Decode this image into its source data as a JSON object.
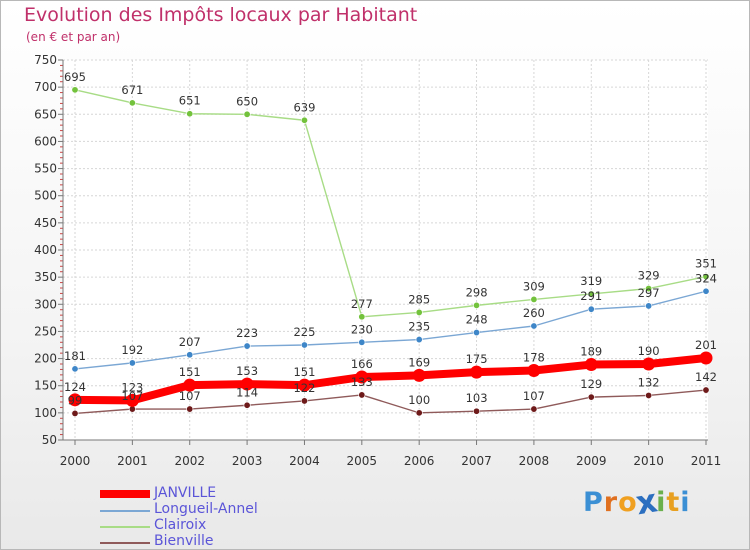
{
  "title": "Evolution des Impôts locaux par Habitant",
  "subtitle": "(en € et par an)",
  "brand": {
    "letters": [
      "P",
      "r",
      "o",
      "x",
      "i",
      "t",
      "i"
    ],
    "colors": [
      "#3b8fd4",
      "#e07020",
      "#f0a020",
      "#2c6fc0",
      "#6ab04c",
      "#e8a020",
      "#3b8fd4"
    ]
  },
  "chart_data": {
    "type": "line",
    "title": "Evolution des Impôts locaux par Habitant",
    "subtitle": "(en € et par an)",
    "xlabel": "",
    "ylabel": "",
    "ylim": [
      50,
      750
    ],
    "yticks": [
      "50",
      "100",
      "150",
      "200",
      "250",
      "300",
      "350",
      "400",
      "450",
      "500",
      "550",
      "600",
      "650",
      "700",
      "750"
    ],
    "categories": [
      "2000",
      "2001",
      "2002",
      "2003",
      "2004",
      "2005",
      "2006",
      "2007",
      "2008",
      "2009",
      "2010",
      "2011"
    ],
    "grid": true,
    "legend_position": "bottom-left",
    "series": [
      {
        "name": "JANVILLE",
        "color": "#ff0000",
        "marker": "#ff0000",
        "width": "thick",
        "values": [
          124,
          123,
          151,
          153,
          151,
          166,
          169,
          175,
          178,
          189,
          190,
          201
        ]
      },
      {
        "name": "Longueil-Annel",
        "color": "#7ba7d4",
        "marker": "#3e86c8",
        "width": "thin",
        "values": [
          181,
          192,
          207,
          223,
          225,
          230,
          235,
          248,
          260,
          291,
          297,
          324
        ]
      },
      {
        "name": "Clairoix",
        "color": "#a8dc86",
        "marker": "#73c23c",
        "width": "thin",
        "values": [
          695,
          671,
          651,
          650,
          639,
          277,
          285,
          298,
          309,
          319,
          329,
          351
        ]
      },
      {
        "name": "Bienville",
        "color": "#8f5a5a",
        "marker": "#6e1a1a",
        "width": "thin",
        "values": [
          99,
          107,
          107,
          114,
          122,
          133,
          100,
          103,
          107,
          129,
          132,
          142
        ]
      }
    ]
  }
}
